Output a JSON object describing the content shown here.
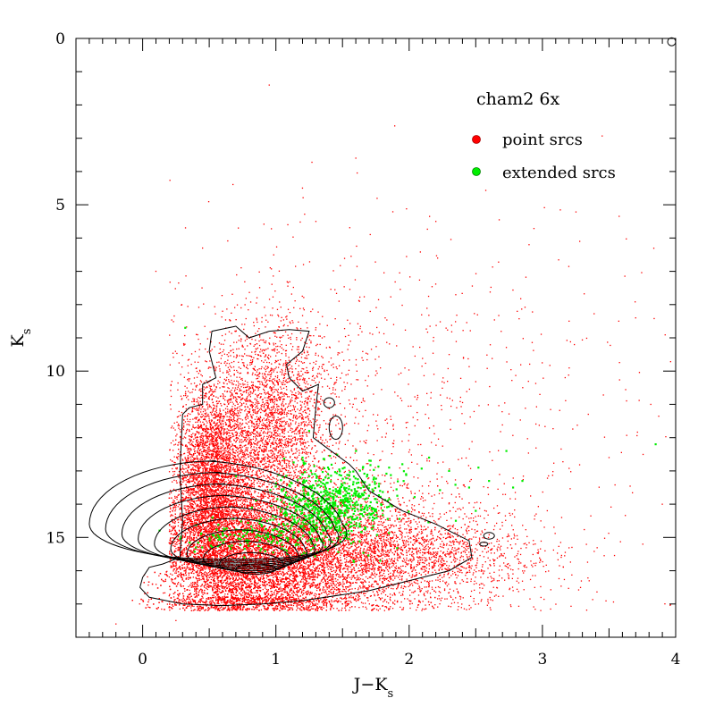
{
  "chart_data": {
    "type": "scatter",
    "title": "cham2 6x",
    "xlabel": "J−K",
    "xlabel_sub": "s",
    "ylabel": "K",
    "ylabel_sub": "s",
    "xlim": [
      -0.5,
      4
    ],
    "ylim": [
      18,
      0
    ],
    "y_inverted": true,
    "grid": false,
    "x_ticks": [
      0,
      1,
      2,
      3,
      4
    ],
    "x_tick_labels": [
      "0",
      "1",
      "2",
      "3",
      "4"
    ],
    "y_ticks": [
      0,
      5,
      10,
      15
    ],
    "y_tick_labels": [
      "0",
      "5",
      "10",
      "15"
    ],
    "legend": {
      "placement": "top-right"
    },
    "series": [
      {
        "name": "point srcs",
        "color": "#ff0000",
        "marker": "dot",
        "density_clusters": [
          {
            "cx": 0.85,
            "cy": 15.8,
            "sx": 0.35,
            "sy": 1.0,
            "n": 9000
          },
          {
            "cx": 0.55,
            "cy": 14.2,
            "sx": 0.15,
            "sy": 1.3,
            "n": 3500
          },
          {
            "cx": 0.95,
            "cy": 12.0,
            "sx": 0.22,
            "sy": 1.5,
            "n": 2500
          },
          {
            "cx": 0.5,
            "cy": 12.8,
            "sx": 0.12,
            "sy": 1.2,
            "n": 1500
          },
          {
            "cx": 1.5,
            "cy": 15.4,
            "sx": 0.45,
            "sy": 0.9,
            "n": 3000
          },
          {
            "cx": 2.1,
            "cy": 15.6,
            "sx": 0.5,
            "sy": 0.7,
            "n": 1200
          },
          {
            "cx": 1.4,
            "cy": 12.0,
            "sx": 0.8,
            "sy": 3.0,
            "n": 900
          },
          {
            "cx": 2.5,
            "cy": 13.0,
            "sx": 1.0,
            "sy": 3.5,
            "n": 300
          },
          {
            "cx": 0.9,
            "cy": 10.5,
            "sx": 0.3,
            "sy": 1.2,
            "n": 600
          }
        ],
        "points": [
          [
            0.95,
            1.4
          ],
          [
            1.6,
            3.6
          ],
          [
            1.2,
            4.5
          ],
          [
            1.3,
            5.5
          ],
          [
            0.1,
            7.0
          ],
          [
            0.25,
            17.5
          ],
          [
            -0.2,
            17.6
          ],
          [
            3.5,
            12.6
          ],
          [
            3.9,
            14.0
          ],
          [
            3.7,
            8.4
          ],
          [
            3.2,
            8.5
          ],
          [
            2.9,
            6.2
          ],
          [
            2.3,
            9.5
          ],
          [
            0.45,
            6.3
          ],
          [
            0.6,
            8.2
          ]
        ]
      },
      {
        "name": "extended srcs",
        "color": "#00ee00",
        "marker": "dot",
        "density_clusters": [
          {
            "cx": 1.38,
            "cy": 14.1,
            "sx": 0.2,
            "sy": 0.55,
            "n": 650
          },
          {
            "cx": 0.85,
            "cy": 15.0,
            "sx": 0.28,
            "sy": 0.25,
            "n": 140
          },
          {
            "cx": 1.65,
            "cy": 13.6,
            "sx": 0.25,
            "sy": 0.5,
            "n": 110
          }
        ],
        "points": [
          [
            0.32,
            8.7
          ],
          [
            1.2,
            12.6
          ],
          [
            1.25,
            11.8
          ],
          [
            2.15,
            12.6
          ],
          [
            2.3,
            13.0
          ],
          [
            2.45,
            13.5
          ],
          [
            2.52,
            12.9
          ],
          [
            2.6,
            13.3
          ],
          [
            2.73,
            12.4
          ],
          [
            2.78,
            13.5
          ],
          [
            2.85,
            13.3
          ],
          [
            2.5,
            14.2
          ],
          [
            2.35,
            14.5
          ],
          [
            3.85,
            12.2
          ],
          [
            1.85,
            12.9
          ]
        ]
      }
    ],
    "contours": {
      "color": "#000000",
      "levels": 10
    }
  }
}
